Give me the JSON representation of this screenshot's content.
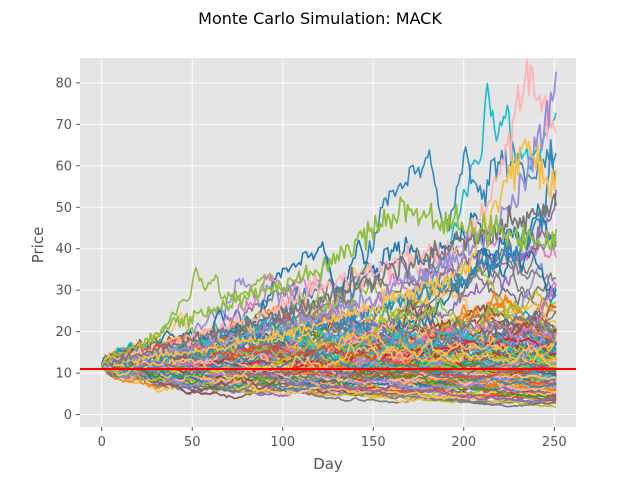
{
  "chart_data": {
    "type": "line",
    "title": "Monte Carlo Simulation: MACK",
    "xlabel": "Day",
    "ylabel": "Price",
    "xlim": [
      -12,
      262
    ],
    "ylim": [
      -3,
      86
    ],
    "xticks": [
      0,
      50,
      100,
      150,
      200,
      250
    ],
    "yticks": [
      0,
      10,
      20,
      30,
      40,
      50,
      60,
      70,
      80
    ],
    "grid": true,
    "style": "ggplot",
    "start_price": 12.0,
    "days": 251,
    "num_simulations": 180,
    "reference_line": {
      "y": 11.0,
      "color": "#ff0000"
    },
    "series_colors": [
      "#1f77b4",
      "#ff7f0e",
      "#2ca02c",
      "#d62728",
      "#9467bd",
      "#8c564b",
      "#e377c2",
      "#7f7f7f",
      "#bcbd22",
      "#17becf",
      "#ffb3b3",
      "#8fbf3f",
      "#f5c04a",
      "#988ed5",
      "#777777",
      "#348abd",
      "#e24a33",
      "#fbc15e"
    ],
    "annotated_paths": [
      {
        "color": "#ffb3b3",
        "x": [
          0,
          40,
          80,
          120,
          160,
          200,
          220,
          235,
          245,
          250
        ],
        "y": [
          12,
          17,
          22,
          30,
          36,
          40,
          57,
          82,
          75,
          70
        ]
      },
      {
        "color": "#348abd",
        "x": [
          0,
          50,
          100,
          150,
          200,
          230,
          245,
          248,
          250
        ],
        "y": [
          12,
          15,
          19,
          25,
          33,
          40,
          50,
          64,
          61
        ]
      },
      {
        "color": "#988ed5",
        "x": [
          0,
          50,
          100,
          150,
          200,
          230,
          245,
          250
        ],
        "y": [
          12,
          16,
          21,
          28,
          38,
          52,
          70,
          79
        ]
      },
      {
        "color": "#f5c04a",
        "x": [
          0,
          50,
          100,
          150,
          200,
          225,
          235,
          250
        ],
        "y": [
          12,
          15,
          19,
          26,
          34,
          58,
          65,
          55
        ]
      },
      {
        "color": "#777777",
        "x": [
          0,
          50,
          100,
          150,
          200,
          250
        ],
        "y": [
          12,
          18,
          24,
          33,
          42,
          50
        ]
      },
      {
        "color": "#8fbf3f",
        "x": [
          0,
          40,
          80,
          120,
          165,
          200,
          250
        ],
        "y": [
          12,
          22,
          28,
          35,
          50,
          45,
          42
        ]
      }
    ]
  }
}
